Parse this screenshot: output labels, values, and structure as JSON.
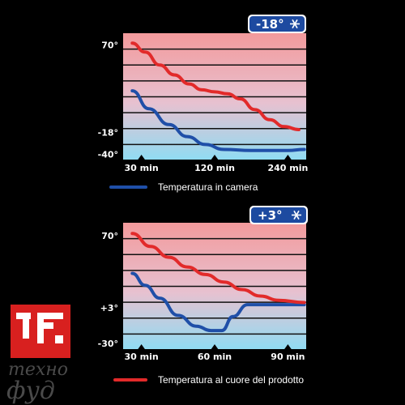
{
  "colors": {
    "background": "#000000",
    "gradient_top": "#f39a9c",
    "gradient_bottom": "#8fdcf3",
    "room_line": "#1f4fa8",
    "core_line": "#e22a2a",
    "badge": "#1d4aa0",
    "logo_red": "#d8201f"
  },
  "chart_data": [
    {
      "type": "line",
      "badge": "-18°",
      "badge_icon": "snowflake-icon",
      "y_ticks": [
        "70°",
        "-18°",
        "-40°"
      ],
      "y_tick_values": [
        70,
        -18,
        -40
      ],
      "ylim": [
        -46,
        82
      ],
      "x_ticks": [
        "30 min",
        "120 min",
        "240 min"
      ],
      "x_tick_positions": [
        0.1,
        0.5,
        0.9
      ],
      "series": [
        {
          "name": "Temperatura in camera",
          "color": "#1f4fa8",
          "points": [
            [
              0.05,
              24
            ],
            [
              0.14,
              6
            ],
            [
              0.25,
              -10
            ],
            [
              0.35,
              -22
            ],
            [
              0.45,
              -30
            ],
            [
              0.55,
              -35
            ],
            [
              0.7,
              -36
            ],
            [
              0.9,
              -36
            ],
            [
              0.99,
              -35
            ]
          ]
        },
        {
          "name": "Temperatura al cuore del prodotto",
          "color": "#e22a2a",
          "points": [
            [
              0.05,
              72
            ],
            [
              0.12,
              63
            ],
            [
              0.2,
              50
            ],
            [
              0.28,
              40
            ],
            [
              0.36,
              31
            ],
            [
              0.43,
              25
            ],
            [
              0.5,
              23
            ],
            [
              0.57,
              21
            ],
            [
              0.64,
              16
            ],
            [
              0.72,
              5
            ],
            [
              0.8,
              -5
            ],
            [
              0.88,
              -12
            ],
            [
              0.96,
              -15
            ]
          ]
        }
      ]
    },
    {
      "type": "line",
      "badge": "+3°",
      "badge_icon": "snowflake-icon",
      "y_ticks": [
        "70°",
        "+3°",
        "-30°"
      ],
      "y_tick_values": [
        70,
        3,
        -30
      ],
      "ylim": [
        -36,
        82
      ],
      "x_ticks": [
        "30 min",
        "60 min",
        "90 min"
      ],
      "x_tick_positions": [
        0.1,
        0.5,
        0.9
      ],
      "series": [
        {
          "name": "Temperatura in camera",
          "color": "#1f4fa8",
          "points": [
            [
              0.05,
              35
            ],
            [
              0.12,
              24
            ],
            [
              0.2,
              12
            ],
            [
              0.3,
              -4
            ],
            [
              0.4,
              -14
            ],
            [
              0.48,
              -18
            ],
            [
              0.54,
              -18
            ],
            [
              0.6,
              -5
            ],
            [
              0.68,
              6
            ],
            [
              0.8,
              6
            ],
            [
              0.99,
              6
            ]
          ]
        },
        {
          "name": "Temperatura al cuore del prodotto",
          "color": "#e22a2a",
          "points": [
            [
              0.05,
              72
            ],
            [
              0.15,
              60
            ],
            [
              0.25,
              50
            ],
            [
              0.35,
              41
            ],
            [
              0.45,
              34
            ],
            [
              0.55,
              27
            ],
            [
              0.65,
              20
            ],
            [
              0.75,
              14
            ],
            [
              0.85,
              10
            ],
            [
              0.99,
              8
            ]
          ]
        }
      ]
    }
  ],
  "legend": {
    "room": "Temperatura in camera",
    "core": "Temperatura al cuore del prodotto"
  },
  "logo": {
    "line1": "техно",
    "line2": "фуд"
  }
}
